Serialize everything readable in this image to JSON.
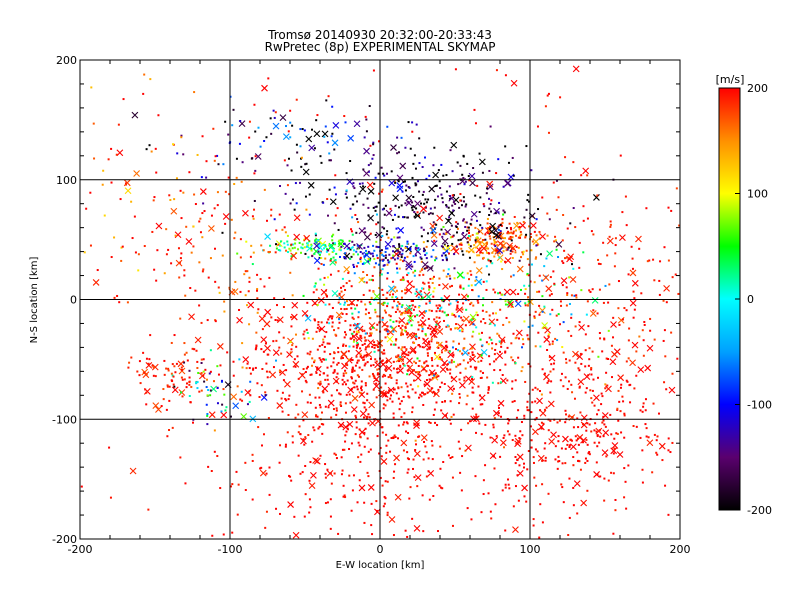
{
  "chart_data": {
    "type": "scatter",
    "title": "Tromsø 20140930 20:32:00-20:33:43",
    "subtitle": "RwPretec (8p) EXPERIMENTAL SKYMAP",
    "xlabel": "E-W location [km]",
    "ylabel": "N-S location [km]",
    "xlim": [
      -200,
      200
    ],
    "ylim": [
      -200,
      200
    ],
    "xticks": [
      -200,
      -100,
      0,
      100,
      200
    ],
    "yticks": [
      -200,
      -100,
      0,
      100,
      200
    ],
    "xtick_labels": [
      "-200",
      "-100",
      "0",
      "100",
      "200"
    ],
    "ytick_labels": [
      "-200",
      "-100",
      "0",
      "100",
      "200"
    ],
    "grid": true,
    "colorbar": {
      "label": "[m/s]",
      "range": [
        -200,
        200
      ],
      "ticks": [
        200,
        100,
        0,
        -100,
        -200
      ],
      "tick_labels": [
        "200",
        "100",
        "0",
        "-100",
        "-200"
      ],
      "colors": [
        "#000000",
        "#5a006e",
        "#0000ff",
        "#00a0ff",
        "#00ffff",
        "#00ff00",
        "#ffff00",
        "#ff9000",
        "#ff0000"
      ]
    },
    "markers": [
      "dot",
      "cross"
    ],
    "clusters": [
      {
        "cx": -5,
        "cy": -55,
        "sx": 40,
        "sy": 35,
        "n": 750,
        "velocity": 200,
        "spread": 15
      },
      {
        "cx": 30,
        "cy": -20,
        "sx": 50,
        "sy": 40,
        "n": 450,
        "velocity": 185,
        "spread": 40
      },
      {
        "cx": 130,
        "cy": -105,
        "sx": 35,
        "sy": 30,
        "n": 300,
        "velocity": 200,
        "spread": 10
      },
      {
        "cx": -140,
        "cy": -65,
        "sx": 15,
        "sy": 12,
        "n": 80,
        "velocity": 190,
        "spread": 20
      },
      {
        "cx": -110,
        "cy": -75,
        "sx": 15,
        "sy": 15,
        "n": 50,
        "velocity": -60,
        "spread": 140
      },
      {
        "cx": 80,
        "cy": 50,
        "sx": 15,
        "sy": 8,
        "n": 160,
        "velocity": 170,
        "spread": 40
      },
      {
        "cx": 40,
        "cy": 70,
        "sx": 35,
        "sy": 25,
        "n": 260,
        "velocity": -180,
        "spread": 60
      },
      {
        "cx": 0,
        "cy": 90,
        "sx": 50,
        "sy": 20,
        "n": 140,
        "velocity": -170,
        "spread": 80
      },
      {
        "cx": -40,
        "cy": 43,
        "sx": 20,
        "sy": 5,
        "n": 120,
        "velocity": 40,
        "spread": 60
      },
      {
        "cx": 0,
        "cy": 38,
        "sx": 20,
        "sy": 5,
        "n": 100,
        "velocity": -110,
        "spread": 50
      },
      {
        "cx": 40,
        "cy": 0,
        "sx": 50,
        "sy": 30,
        "n": 300,
        "velocity": 40,
        "spread": 120
      },
      {
        "cx": -60,
        "cy": 130,
        "sx": 40,
        "sy": 15,
        "n": 90,
        "velocity": -150,
        "spread": 110
      },
      {
        "cx": -100,
        "cy": 40,
        "sx": 30,
        "sy": 45,
        "n": 120,
        "velocity": 180,
        "spread": 40
      },
      {
        "cx": 0,
        "cy": -150,
        "sx": 60,
        "sy": 30,
        "n": 220,
        "velocity": 200,
        "spread": 10
      },
      {
        "cx": 150,
        "cy": 0,
        "sx": 35,
        "sy": 50,
        "n": 200,
        "velocity": 195,
        "spread": 20
      },
      {
        "cx": -160,
        "cy": 100,
        "sx": 25,
        "sy": 50,
        "n": 60,
        "velocity": 175,
        "spread": 70
      },
      {
        "cx": 0,
        "cy": 0,
        "sx": 130,
        "sy": 130,
        "n": 300,
        "velocity": 200,
        "spread": 15
      }
    ]
  }
}
